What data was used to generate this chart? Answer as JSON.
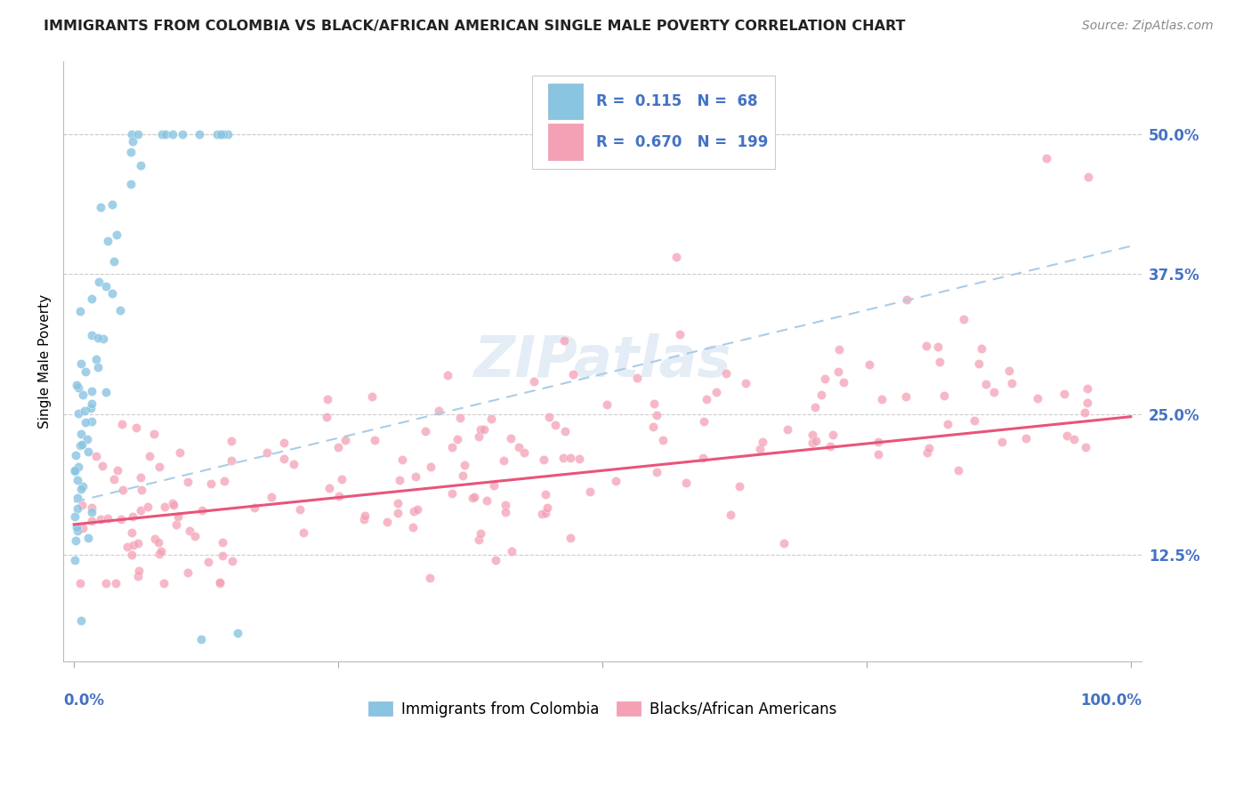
{
  "title": "IMMIGRANTS FROM COLOMBIA VS BLACK/AFRICAN AMERICAN SINGLE MALE POVERTY CORRELATION CHART",
  "source": "Source: ZipAtlas.com",
  "ylabel": "Single Male Poverty",
  "yticks": [
    "12.5%",
    "25.0%",
    "37.5%",
    "50.0%"
  ],
  "ytick_values": [
    0.125,
    0.25,
    0.375,
    0.5
  ],
  "legend_label1": "Immigrants from Colombia",
  "legend_label2": "Blacks/African Americans",
  "r1": "0.115",
  "n1": "68",
  "r2": "0.670",
  "n2": "199",
  "color_blue": "#89c4e1",
  "color_pink": "#f4a0b5",
  "color_blue_line": "#aacce8",
  "color_pink_line": "#e8547a",
  "watermark": "ZIPatlas"
}
